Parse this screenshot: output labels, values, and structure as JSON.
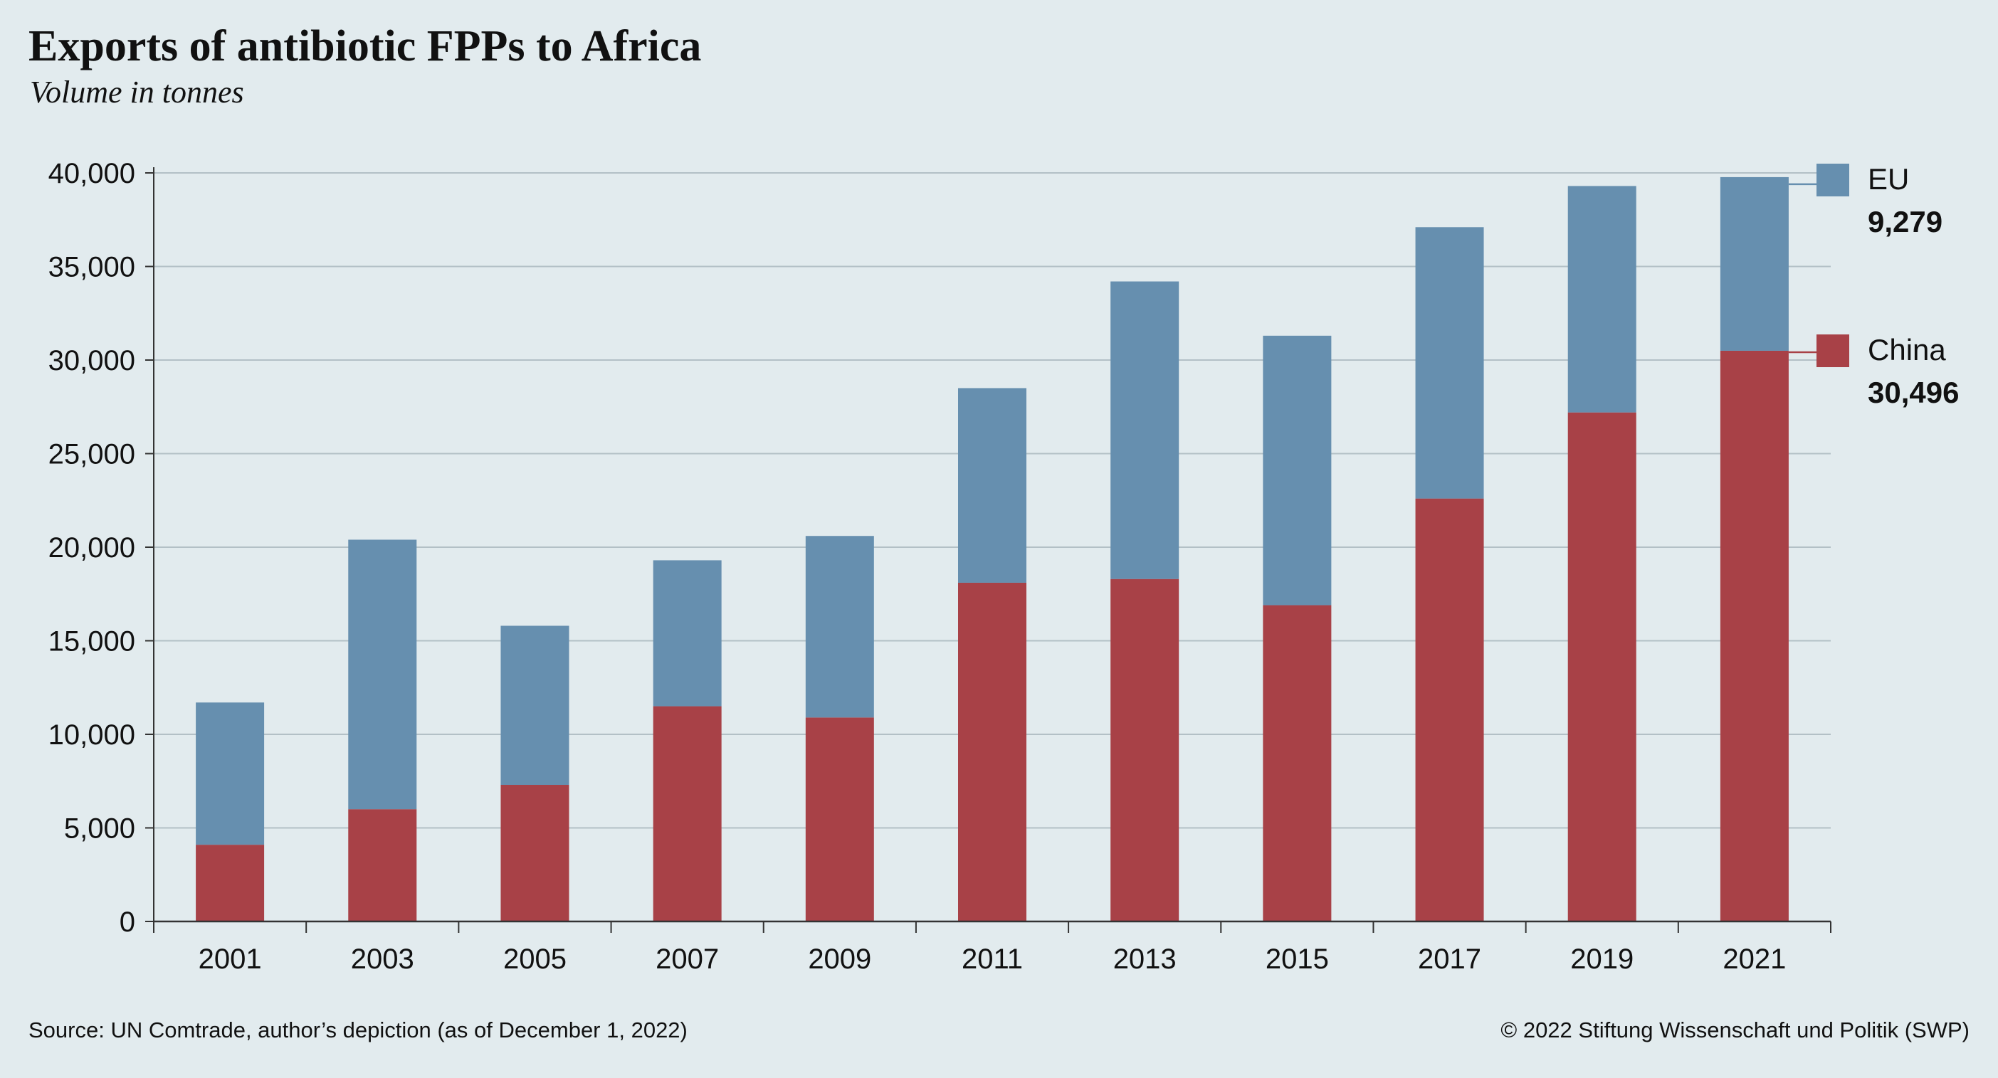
{
  "title": "Exports of antibiotic FPPs to Africa",
  "subtitle": "Volume in tonnes",
  "source": "Source: UN Comtrade, author’s depiction (as of December 1, 2022)",
  "copyright": "© 2022 Stiftung Wissenschaft und Politik (SWP)",
  "colors": {
    "china": "#a84147",
    "eu": "#668faf",
    "grid": "#b3c0c6",
    "axis": "#333333"
  },
  "chart_data": {
    "type": "bar",
    "stacked": true,
    "categories": [
      "2001",
      "2003",
      "2005",
      "2007",
      "2009",
      "2011",
      "2013",
      "2015",
      "2017",
      "2019",
      "2021"
    ],
    "series": [
      {
        "name": "China",
        "values": [
          4100,
          6000,
          7300,
          11500,
          10900,
          18100,
          18300,
          16900,
          22600,
          27200,
          30496
        ]
      },
      {
        "name": "EU",
        "values": [
          7600,
          14400,
          8500,
          7800,
          9700,
          10400,
          15900,
          14400,
          14500,
          12100,
          9279
        ]
      }
    ],
    "legend": [
      {
        "name": "EU",
        "value_label": "9,279"
      },
      {
        "name": "China",
        "value_label": "30,496"
      }
    ],
    "ylim": [
      0,
      40000
    ],
    "yticks": [
      0,
      5000,
      10000,
      15000,
      20000,
      25000,
      30000,
      35000,
      40000
    ],
    "ytick_labels": [
      "0",
      "5,000",
      "10,000",
      "15,000",
      "20,000",
      "25,000",
      "30,000",
      "35,000",
      "40,000"
    ],
    "grid": true,
    "legend_position": "right"
  }
}
